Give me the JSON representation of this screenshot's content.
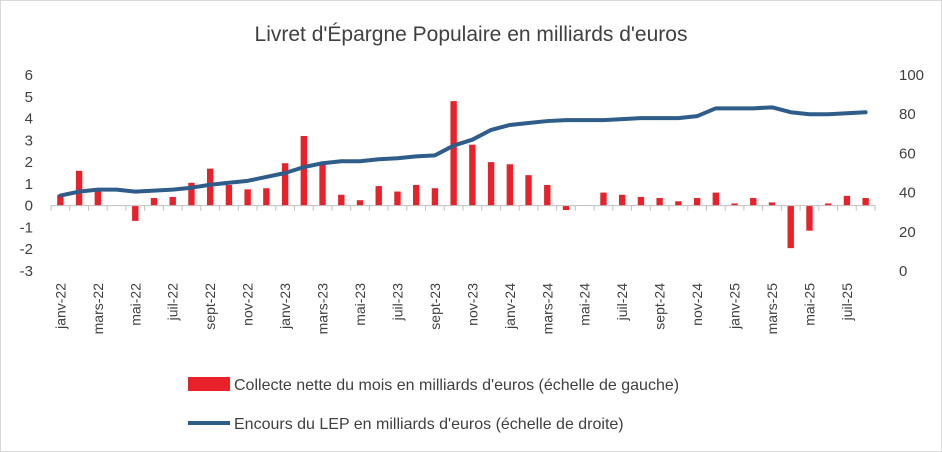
{
  "chart_data": {
    "type": "bar",
    "title": "Livret d'Épargne Populaire en milliards d'euros",
    "categories": [
      "janv-22",
      "févr-22",
      "mars-22",
      "avr-22",
      "mai-22",
      "juin-22",
      "juil-22",
      "août-22",
      "sept-22",
      "oct-22",
      "nov-22",
      "déc-22",
      "janv-23",
      "févr-23",
      "mars-23",
      "avr-23",
      "mai-23",
      "juin-23",
      "juil-23",
      "août-23",
      "sept-23",
      "oct-23",
      "nov-23",
      "déc-23",
      "janv-24",
      "févr-24",
      "mars-24",
      "avr-24",
      "mai-24",
      "juin-24",
      "juil-24",
      "août-24",
      "sept-24",
      "oct-24",
      "nov-24",
      "déc-24",
      "janv-25",
      "févr-25",
      "mars-25",
      "avr-25",
      "mai-25",
      "juin-25",
      "juil-25",
      "août-25"
    ],
    "x_tick_labels": [
      "janv-22",
      "mars-22",
      "mai-22",
      "juil-22",
      "sept-22",
      "nov-22",
      "janv-23",
      "mars-23",
      "mai-23",
      "juil-23",
      "sept-23",
      "nov-23",
      "janv-24",
      "mars-24",
      "mai-24",
      "juil-24",
      "sept-24",
      "nov-24",
      "janv-25",
      "mars-25",
      "mai-25",
      "juil-25"
    ],
    "series": [
      {
        "name": "Collecte nette du mois en milliards d'euros (échelle de gauche)",
        "type": "bar",
        "axis": "left",
        "color": "#e8212b",
        "values": [
          0.5,
          1.6,
          0.7,
          0.0,
          -0.7,
          0.35,
          0.4,
          1.05,
          1.7,
          0.95,
          0.75,
          0.8,
          1.95,
          3.2,
          2.0,
          0.5,
          0.25,
          0.9,
          0.65,
          0.95,
          0.8,
          4.8,
          2.8,
          2.0,
          1.9,
          1.4,
          0.95,
          -0.2,
          0.0,
          0.6,
          0.5,
          0.4,
          0.35,
          0.2,
          0.35,
          0.6,
          0.1,
          0.35,
          0.15,
          -1.95,
          -1.15,
          0.1,
          0.45,
          0.35
        ]
      },
      {
        "name": "Encours du LEP en milliards d'euros (échelle de droite)",
        "type": "line",
        "axis": "right",
        "color": "#2e5d8a",
        "values": [
          38.5,
          40.5,
          41.5,
          41.5,
          40.5,
          41,
          41.5,
          42.5,
          44,
          45,
          46,
          48,
          50,
          53,
          55,
          56,
          56,
          57,
          57.5,
          58.5,
          59,
          64,
          67,
          72,
          74.5,
          75.5,
          76.5,
          77,
          77,
          77,
          77.5,
          78,
          78,
          78,
          79,
          83,
          83,
          83,
          83.5,
          81,
          80,
          80,
          80.5,
          81
        ]
      }
    ],
    "y_left": {
      "ylim": [
        -3,
        6
      ],
      "ticks": [
        "-3",
        "-2",
        "-1",
        "0",
        "1",
        "2",
        "3",
        "4",
        "5",
        "6"
      ]
    },
    "y_right": {
      "ylim": [
        0,
        100
      ],
      "ticks": [
        "0",
        "20",
        "40",
        "60",
        "80",
        "100"
      ]
    },
    "grid": false,
    "legend_position": "bottom"
  }
}
